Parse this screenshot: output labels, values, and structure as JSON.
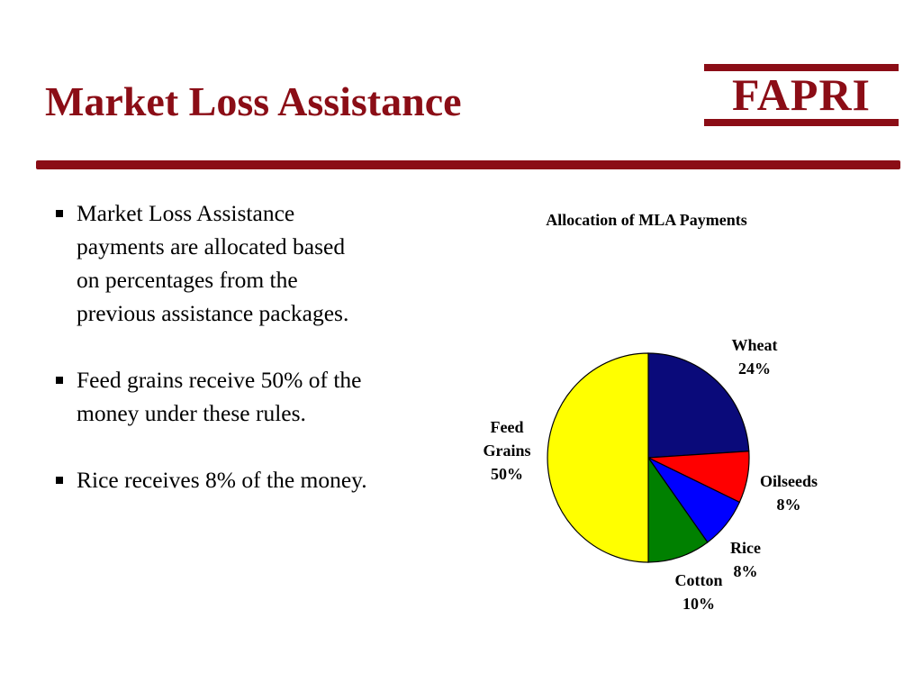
{
  "slide": {
    "title": "Market Loss Assistance",
    "logo": "FAPRI"
  },
  "bullets": [
    "Market Loss Assistance payments are allocated based on percentages from the previous assistance packages.",
    "Feed grains receive 50% of the money under these rules.",
    "Rice receives 8% of the money."
  ],
  "colors": {
    "accent": "#8b0d16"
  },
  "chart_data": {
    "type": "pie",
    "title": "Allocation of MLA Payments",
    "slices": [
      {
        "label": [
          "Wheat"
        ],
        "value": 24,
        "value_label": "24%",
        "color": "#0a0a7a"
      },
      {
        "label": [
          "Oilseeds"
        ],
        "value": 8,
        "value_label": "8%",
        "color": "#ff0000"
      },
      {
        "label": [
          "Rice"
        ],
        "value": 8,
        "value_label": "8%",
        "color": "#0000ff"
      },
      {
        "label": [
          "Cotton"
        ],
        "value": 10,
        "value_label": "10%",
        "color": "#008000"
      },
      {
        "label": [
          "Feed",
          "Grains"
        ],
        "value": 50,
        "value_label": "50%",
        "color": "#ffff00"
      }
    ]
  }
}
